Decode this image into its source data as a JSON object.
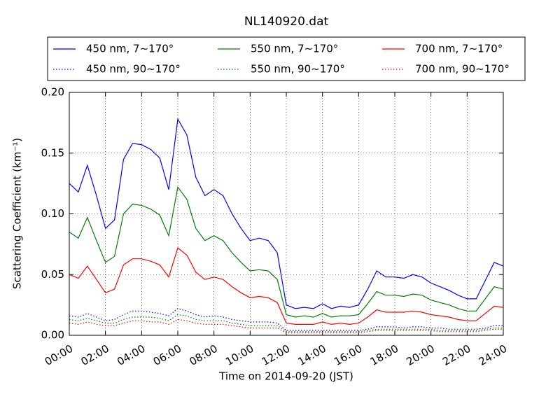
{
  "chart_data": {
    "type": "line",
    "title": "NL140920.dat",
    "xlabel": "Time on 2014-09-20 (JST)",
    "ylabel": "Scattering Coefficient (km⁻¹)",
    "x": [
      0,
      0.5,
      1,
      1.5,
      2,
      2.5,
      3,
      3.5,
      4,
      4.5,
      5,
      5.5,
      6,
      6.5,
      7,
      7.5,
      8,
      8.5,
      9,
      9.5,
      10,
      10.5,
      11,
      11.5,
      12,
      12.5,
      13,
      13.5,
      14,
      14.5,
      15,
      15.5,
      16,
      16.5,
      17,
      17.5,
      18,
      18.5,
      19,
      19.5,
      20,
      20.5,
      21,
      21.5,
      22,
      22.5,
      23,
      23.5,
      24
    ],
    "series": [
      {
        "name": "450 nm, 7∼170°",
        "color": "#0000ff",
        "dash": "solid",
        "values": [
          0.125,
          0.118,
          0.14,
          0.115,
          0.088,
          0.095,
          0.145,
          0.158,
          0.157,
          0.153,
          0.146,
          0.12,
          0.178,
          0.165,
          0.13,
          0.115,
          0.12,
          0.115,
          0.1,
          0.088,
          0.078,
          0.08,
          0.078,
          0.068,
          0.025,
          0.022,
          0.023,
          0.022,
          0.026,
          0.022,
          0.024,
          0.023,
          0.025,
          0.038,
          0.053,
          0.048,
          0.048,
          0.047,
          0.05,
          0.048,
          0.043,
          0.04,
          0.037,
          0.033,
          0.03,
          0.03,
          0.045,
          0.06,
          0.057
        ]
      },
      {
        "name": "550 nm, 7∼170°",
        "color": "#008000",
        "dash": "solid",
        "values": [
          0.085,
          0.08,
          0.097,
          0.078,
          0.06,
          0.065,
          0.1,
          0.108,
          0.107,
          0.104,
          0.099,
          0.082,
          0.122,
          0.112,
          0.088,
          0.078,
          0.082,
          0.078,
          0.068,
          0.06,
          0.053,
          0.054,
          0.053,
          0.046,
          0.017,
          0.015,
          0.016,
          0.015,
          0.018,
          0.015,
          0.016,
          0.016,
          0.017,
          0.026,
          0.036,
          0.033,
          0.033,
          0.032,
          0.034,
          0.033,
          0.029,
          0.027,
          0.025,
          0.022,
          0.02,
          0.02,
          0.03,
          0.04,
          0.038
        ]
      },
      {
        "name": "700 nm, 7∼170°",
        "color": "#ff0000",
        "dash": "solid",
        "values": [
          0.05,
          0.047,
          0.057,
          0.046,
          0.035,
          0.038,
          0.058,
          0.063,
          0.063,
          0.061,
          0.058,
          0.048,
          0.072,
          0.066,
          0.052,
          0.046,
          0.048,
          0.046,
          0.04,
          0.035,
          0.031,
          0.032,
          0.031,
          0.027,
          0.01,
          0.009,
          0.009,
          0.009,
          0.011,
          0.009,
          0.01,
          0.009,
          0.01,
          0.015,
          0.021,
          0.019,
          0.019,
          0.019,
          0.02,
          0.019,
          0.017,
          0.016,
          0.015,
          0.013,
          0.012,
          0.012,
          0.018,
          0.024,
          0.023
        ]
      },
      {
        "name": "450 nm, 90∼170°",
        "color": "#0000ff",
        "dash": "dotted",
        "values": [
          0.016,
          0.015,
          0.018,
          0.015,
          0.012,
          0.013,
          0.017,
          0.02,
          0.02,
          0.019,
          0.018,
          0.016,
          0.022,
          0.02,
          0.017,
          0.015,
          0.016,
          0.015,
          0.013,
          0.012,
          0.011,
          0.011,
          0.011,
          0.01,
          0.004,
          0.004,
          0.004,
          0.004,
          0.004,
          0.004,
          0.004,
          0.004,
          0.004,
          0.005,
          0.007,
          0.007,
          0.007,
          0.006,
          0.007,
          0.007,
          0.006,
          0.006,
          0.005,
          0.005,
          0.005,
          0.005,
          0.006,
          0.008,
          0.008
        ]
      },
      {
        "name": "550 nm, 90∼170°",
        "color": "#008000",
        "dash": "dotted",
        "values": [
          0.013,
          0.012,
          0.014,
          0.012,
          0.01,
          0.01,
          0.013,
          0.015,
          0.015,
          0.015,
          0.014,
          0.012,
          0.017,
          0.016,
          0.013,
          0.012,
          0.012,
          0.012,
          0.01,
          0.009,
          0.008,
          0.008,
          0.008,
          0.008,
          0.003,
          0.003,
          0.003,
          0.003,
          0.003,
          0.003,
          0.003,
          0.003,
          0.003,
          0.004,
          0.005,
          0.005,
          0.005,
          0.005,
          0.005,
          0.005,
          0.005,
          0.004,
          0.004,
          0.004,
          0.004,
          0.004,
          0.005,
          0.006,
          0.006
        ]
      },
      {
        "name": "700 nm, 90∼170°",
        "color": "#ff0000",
        "dash": "dotted",
        "values": [
          0.01,
          0.009,
          0.011,
          0.009,
          0.008,
          0.008,
          0.01,
          0.012,
          0.012,
          0.011,
          0.011,
          0.009,
          0.013,
          0.012,
          0.01,
          0.009,
          0.009,
          0.009,
          0.008,
          0.007,
          0.006,
          0.006,
          0.006,
          0.006,
          0.002,
          0.002,
          0.002,
          0.002,
          0.002,
          0.002,
          0.002,
          0.002,
          0.002,
          0.003,
          0.004,
          0.004,
          0.004,
          0.004,
          0.004,
          0.004,
          0.004,
          0.003,
          0.003,
          0.003,
          0.003,
          0.003,
          0.004,
          0.005,
          0.005
        ]
      }
    ],
    "xlim": [
      0,
      24
    ],
    "xticks": [
      {
        "value": 0,
        "label": "00:00"
      },
      {
        "value": 2,
        "label": "02:00"
      },
      {
        "value": 4,
        "label": "04:00"
      },
      {
        "value": 6,
        "label": "06:00"
      },
      {
        "value": 8,
        "label": "08:00"
      },
      {
        "value": 10,
        "label": "10:00"
      },
      {
        "value": 12,
        "label": "12:00"
      },
      {
        "value": 14,
        "label": "14:00"
      },
      {
        "value": 16,
        "label": "16:00"
      },
      {
        "value": 18,
        "label": "18:00"
      },
      {
        "value": 20,
        "label": "20:00"
      },
      {
        "value": 22,
        "label": "22:00"
      },
      {
        "value": 24,
        "label": "24:00"
      }
    ],
    "ylim": [
      0,
      0.2
    ],
    "yticks": [
      {
        "value": 0,
        "label": "0.00"
      },
      {
        "value": 0.05,
        "label": "0.05"
      },
      {
        "value": 0.1,
        "label": "0.10"
      },
      {
        "value": 0.15,
        "label": "0.15"
      },
      {
        "value": 0.2,
        "label": "0.20"
      }
    ],
    "grid": true,
    "legend": "upper center"
  }
}
